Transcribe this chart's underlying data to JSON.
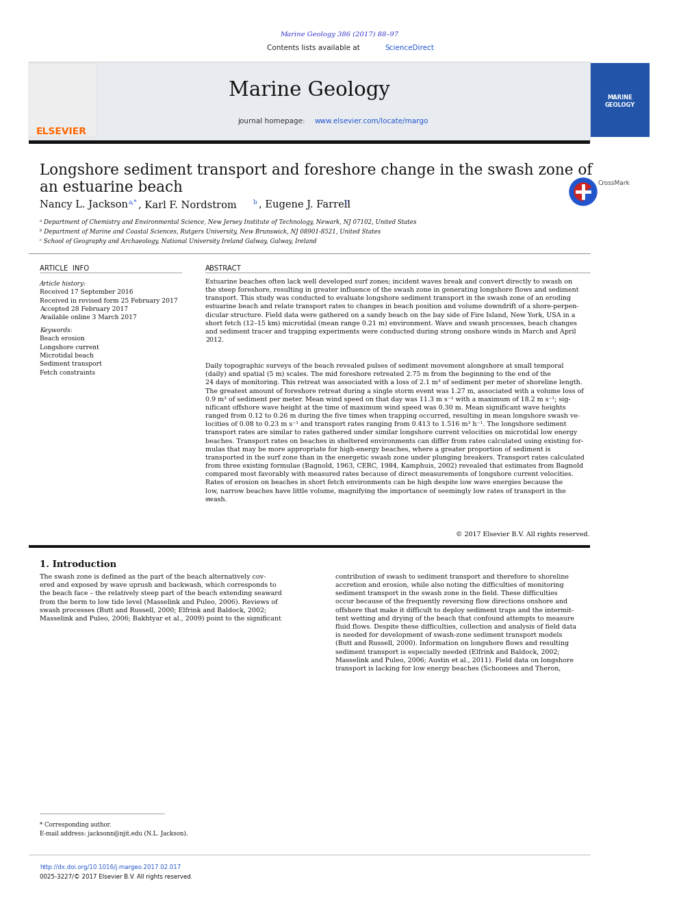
{
  "page_bg": "#ffffff",
  "top_citation": "Marine Geology 386 (2017) 88–97",
  "top_citation_color": "#3333cc",
  "journal_name": "Marine Geology",
  "sciencedirect_color": "#2255cc",
  "homepage_url": "www.elsevier.com/locate/margo",
  "homepage_url_color": "#2255cc",
  "elsevier_color": "#FF6600",
  "affil_a": "ᵃ Department of Chemistry and Environmental Science, New Jersey Institute of Technology, Newark, NJ 07102, United States",
  "affil_b": "ᵇ Department of Marine and Coastal Sciences, Rutgers University, New Brunswick, NJ 08901-8521, United States",
  "affil_c": "ᶜ School of Geography and Archaeology, National University Ireland Galway, Galway, Ireland",
  "copyright": "© 2017 Elsevier B.V. All rights reserved.",
  "link_color": "#2255cc",
  "ref_color": "#2255cc",
  "footnote_star": "* Corresponding author.",
  "footnote_email": "E-mail address: jacksonn@njit.edu (N.L. Jackson).",
  "doi_text": "http://dx.doi.org/10.1016/j.margeo.2017.02.017",
  "issn_text": "0025-3227/© 2017 Elsevier B.V. All rights reserved."
}
